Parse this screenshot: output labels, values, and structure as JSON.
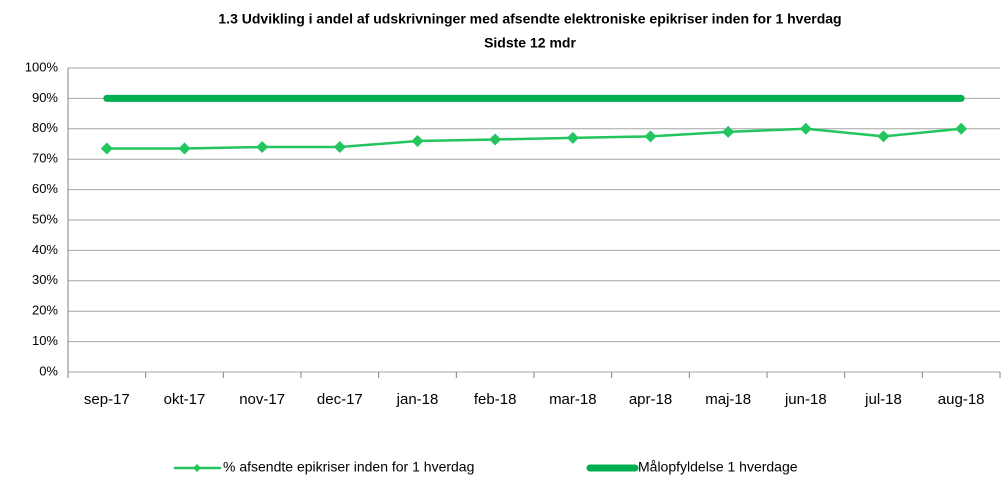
{
  "chart_data": {
    "type": "line",
    "title": "1.3 Udvikling i  andel af udskrivninger med  afsendte elektroniske epikriser  inden for 1  hverdag",
    "subtitle": "Sidste 12 mdr",
    "categories": [
      "sep-17",
      "okt-17",
      "nov-17",
      "dec-17",
      "jan-18",
      "feb-18",
      "mar-18",
      "apr-18",
      "maj-18",
      "jun-18",
      "jul-18",
      "aug-18"
    ],
    "series": [
      {
        "name": "% afsendte epikriser inden for 1 hverdag",
        "color": "#22c55e",
        "values": [
          73.5,
          73.5,
          74,
          74,
          76,
          76.5,
          77,
          77.5,
          79,
          80,
          77.5,
          80
        ]
      },
      {
        "name": "Målopfyldelse 1 hverdage",
        "color": "#00b050",
        "values": [
          90,
          90,
          90,
          90,
          90,
          90,
          90,
          90,
          90,
          90,
          90,
          90
        ]
      }
    ],
    "ylim": [
      0,
      100
    ],
    "yticks": [
      {
        "value": 0,
        "label": "0%"
      },
      {
        "value": 10,
        "label": "10%"
      },
      {
        "value": 20,
        "label": "20%"
      },
      {
        "value": 30,
        "label": "30%"
      },
      {
        "value": 40,
        "label": "40%"
      },
      {
        "value": 50,
        "label": "50%"
      },
      {
        "value": 60,
        "label": "60%"
      },
      {
        "value": 70,
        "label": "70%"
      },
      {
        "value": 80,
        "label": "80%"
      },
      {
        "value": 90,
        "label": "90%"
      },
      {
        "value": 100,
        "label": "100%"
      }
    ],
    "grid": true,
    "legend": "bottom"
  }
}
